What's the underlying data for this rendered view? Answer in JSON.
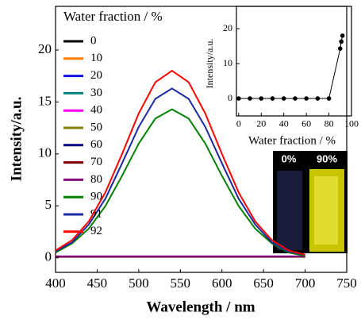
{
  "chart_data": [
    {
      "type": "line",
      "xlabel": "Wavelength / nm",
      "ylabel": "Intensity/a.u.",
      "legend_title": "Water fraction / %",
      "x": [
        400,
        420,
        440,
        460,
        480,
        500,
        520,
        540,
        560,
        580,
        600,
        620,
        640,
        660,
        680,
        700
      ],
      "xlim": [
        400,
        750
      ],
      "xticks": [
        400,
        450,
        500,
        550,
        600,
        650,
        700,
        750
      ],
      "ylim": [
        -1.4,
        24.2
      ],
      "yticks": [
        0,
        5,
        10,
        15,
        20
      ],
      "series": [
        {
          "name": "0",
          "color": "#000000",
          "values": [
            0.1,
            0.1,
            0.1,
            0.1,
            0.1,
            0.1,
            0.1,
            0.1,
            0.1,
            0.1,
            0.1,
            0.1,
            0.1,
            0.1,
            0.1,
            0.1
          ]
        },
        {
          "name": "10",
          "color": "#ff8000",
          "values": [
            0.1,
            0.1,
            0.1,
            0.1,
            0.1,
            0.1,
            0.1,
            0.1,
            0.1,
            0.1,
            0.1,
            0.1,
            0.1,
            0.1,
            0.1,
            0.1
          ]
        },
        {
          "name": "20",
          "color": "#1010e0",
          "values": [
            0.1,
            0.1,
            0.1,
            0.1,
            0.1,
            0.1,
            0.1,
            0.1,
            0.1,
            0.1,
            0.1,
            0.1,
            0.1,
            0.1,
            0.1,
            0.1
          ]
        },
        {
          "name": "30",
          "color": "#008080",
          "values": [
            0.1,
            0.1,
            0.1,
            0.1,
            0.1,
            0.1,
            0.1,
            0.1,
            0.1,
            0.1,
            0.1,
            0.1,
            0.1,
            0.1,
            0.1,
            0.1
          ]
        },
        {
          "name": "40",
          "color": "#ff00ff",
          "values": [
            0.1,
            0.1,
            0.1,
            0.1,
            0.1,
            0.1,
            0.1,
            0.1,
            0.1,
            0.1,
            0.1,
            0.1,
            0.1,
            0.1,
            0.1,
            0.1
          ]
        },
        {
          "name": "50",
          "color": "#808000",
          "values": [
            0.1,
            0.1,
            0.1,
            0.1,
            0.1,
            0.1,
            0.1,
            0.1,
            0.1,
            0.1,
            0.1,
            0.1,
            0.1,
            0.1,
            0.1,
            0.1
          ]
        },
        {
          "name": "60",
          "color": "#000080",
          "values": [
            0.1,
            0.1,
            0.1,
            0.1,
            0.1,
            0.1,
            0.1,
            0.1,
            0.1,
            0.1,
            0.1,
            0.1,
            0.1,
            0.1,
            0.1,
            0.1
          ]
        },
        {
          "name": "70",
          "color": "#800000",
          "values": [
            0.1,
            0.1,
            0.1,
            0.1,
            0.1,
            0.1,
            0.1,
            0.1,
            0.1,
            0.1,
            0.1,
            0.1,
            0.1,
            0.1,
            0.1,
            0.1
          ]
        },
        {
          "name": "80",
          "color": "#800080",
          "values": [
            0.15,
            0.15,
            0.15,
            0.15,
            0.15,
            0.15,
            0.15,
            0.15,
            0.15,
            0.15,
            0.15,
            0.15,
            0.15,
            0.15,
            0.15,
            0.15
          ]
        },
        {
          "name": "90",
          "color": "#008000",
          "values": [
            0.5,
            1.4,
            2.8,
            5.0,
            7.9,
            11.0,
            13.4,
            14.3,
            13.4,
            11.0,
            7.9,
            5.0,
            2.8,
            1.4,
            0.5,
            0.2
          ]
        },
        {
          "name": "91",
          "color": "#1a2aa0",
          "values": [
            0.6,
            1.5,
            3.2,
            5.7,
            9.1,
            12.6,
            15.3,
            16.3,
            15.3,
            12.6,
            9.1,
            5.7,
            3.2,
            1.5,
            0.6,
            0.3
          ]
        },
        {
          "name": "92",
          "color": "#ff0000",
          "values": [
            0.7,
            1.7,
            3.5,
            6.3,
            10.0,
            13.9,
            16.9,
            18.0,
            16.9,
            13.9,
            10.0,
            6.3,
            3.5,
            1.7,
            0.7,
            0.3
          ]
        }
      ],
      "annotations": [
        "0%",
        "90%"
      ]
    },
    {
      "type": "scatter",
      "xlabel": "Water fraction / %",
      "ylabel": "Intensity/a.u.",
      "x": [
        0,
        10,
        20,
        30,
        40,
        50,
        60,
        70,
        80,
        90,
        91,
        92
      ],
      "xlim": [
        -2,
        100
      ],
      "xticks": [
        0,
        20,
        40,
        60,
        80,
        100
      ],
      "ylim": [
        -5,
        26.4
      ],
      "yticks": [
        0,
        10,
        20
      ],
      "series": [
        {
          "color": "#000000",
          "values": [
            0,
            0,
            0,
            0,
            0,
            0,
            0,
            0,
            0,
            14.3,
            16.3,
            18.0
          ]
        }
      ]
    }
  ]
}
